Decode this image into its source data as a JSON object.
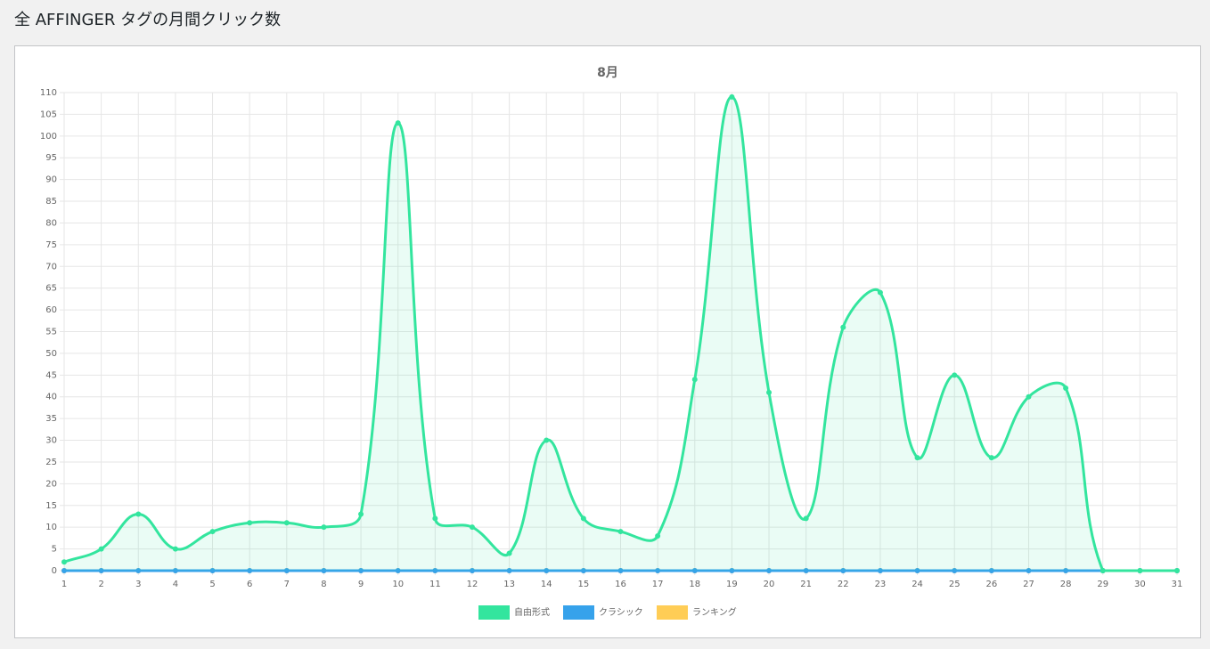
{
  "header": {
    "title": "全 AFFINGER タグの月間クリック数"
  },
  "chart_data": {
    "type": "line",
    "title": "8月",
    "categories": [
      "1",
      "2",
      "3",
      "4",
      "5",
      "6",
      "7",
      "8",
      "9",
      "10",
      "11",
      "12",
      "13",
      "14",
      "15",
      "16",
      "17",
      "18",
      "19",
      "20",
      "21",
      "22",
      "23",
      "24",
      "25",
      "26",
      "27",
      "28",
      "29",
      "30",
      "31"
    ],
    "series": [
      {
        "name": "自由形式",
        "color": "#33e59e",
        "values": [
          2,
          5,
          13,
          5,
          9,
          11,
          11,
          10,
          13,
          103,
          12,
          10,
          4,
          30,
          12,
          9,
          8,
          44,
          109,
          41,
          12,
          56,
          64,
          26,
          45,
          26,
          40,
          42,
          0,
          0,
          0
        ]
      },
      {
        "name": "クラシック",
        "color": "#36a2eb",
        "values": [
          0,
          0,
          0,
          0,
          0,
          0,
          0,
          0,
          0,
          0,
          0,
          0,
          0,
          0,
          0,
          0,
          0,
          0,
          0,
          0,
          0,
          0,
          0,
          0,
          0,
          0,
          0,
          0,
          0,
          0,
          0
        ]
      },
      {
        "name": "ランキング",
        "color": "#ffcd56",
        "values": [
          0,
          0,
          0,
          0,
          0,
          0,
          0,
          0,
          0,
          0,
          0,
          0,
          0,
          0,
          0,
          0,
          0,
          0,
          0,
          0,
          0,
          0,
          0,
          0,
          0,
          0,
          0,
          0,
          0,
          0,
          0
        ]
      }
    ],
    "ylim": [
      0,
      110
    ],
    "yticks": [
      0,
      5,
      10,
      15,
      20,
      25,
      30,
      35,
      40,
      45,
      50,
      55,
      60,
      65,
      70,
      75,
      80,
      85,
      90,
      95,
      100,
      105,
      110
    ],
    "grid": true,
    "legend": "bottom"
  }
}
